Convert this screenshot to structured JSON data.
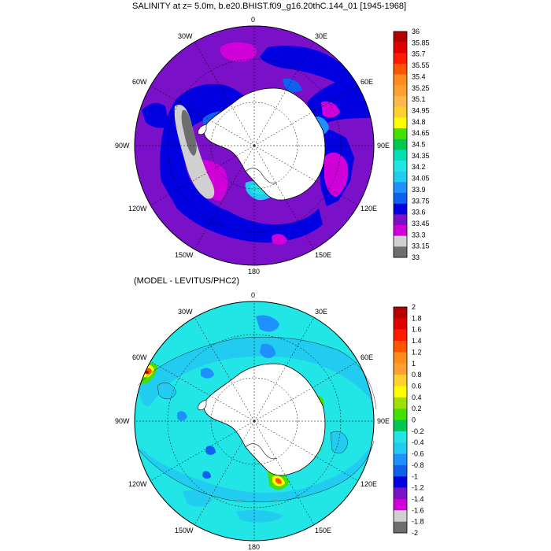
{
  "panel1": {
    "title": "SALINITY at z=   5.0m, b.e20.BHIST.f09_g16.20thC.144_01 [1945-1968]",
    "colorbar": {
      "labels": [
        "36",
        "35.85",
        "35.7",
        "35.55",
        "35.4",
        "35.25",
        "35.1",
        "34.95",
        "34.8",
        "34.65",
        "34.5",
        "34.35",
        "34.2",
        "34.05",
        "33.9",
        "33.75",
        "33.6",
        "33.45",
        "33.3",
        "33.15",
        "33"
      ],
      "colors": [
        "#b40000",
        "#e00000",
        "#ff1a00",
        "#ff5500",
        "#ff8c1a",
        "#ffa030",
        "#ffb84a",
        "#ffd02e",
        "#ffff00",
        "#44e000",
        "#00c850",
        "#00e0b0",
        "#22e6e6",
        "#22ccf0",
        "#1e90ff",
        "#1060f0",
        "#0000e0",
        "#7a10c8",
        "#d000d8",
        "#d0d0d0",
        "#6e6e6e"
      ]
    }
  },
  "panel2": {
    "title": "(MODEL - LEVITUS/PHC2)",
    "colorbar": {
      "labels": [
        "2",
        "1.8",
        "1.6",
        "1.4",
        "1.2",
        "1",
        "0.8",
        "0.6",
        "0.4",
        "0.2",
        "0",
        "-0.2",
        "-0.4",
        "-0.6",
        "-0.8",
        "-1",
        "-1.2",
        "-1.4",
        "-1.6",
        "-1.8",
        "-2"
      ],
      "colors": [
        "#b40000",
        "#e00000",
        "#ff1a00",
        "#ff5500",
        "#ff8c1a",
        "#ffa030",
        "#ffd02e",
        "#ffff00",
        "#a0e000",
        "#44e000",
        "#00c850",
        "#22e6e6",
        "#22ccf0",
        "#1e90ff",
        "#1060f0",
        "#0000e0",
        "#7a10c8",
        "#d000d8",
        "#d0d0d0",
        "#6e6e6e"
      ]
    }
  },
  "longitude_labels": {
    "lon_0": "0",
    "lon_30e": "30E",
    "lon_60e": "60E",
    "lon_90e": "90E",
    "lon_120e": "120E",
    "lon_150e": "150E",
    "lon_180": "180",
    "lon_150w": "150W",
    "lon_120w": "120W",
    "lon_90w": "90W",
    "lon_60w": "60W",
    "lon_30w": "30W"
  },
  "colors": {
    "land": "#ffffff",
    "outline": "#000000"
  }
}
